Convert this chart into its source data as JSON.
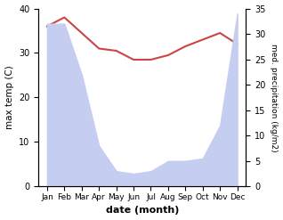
{
  "months": [
    "Jan",
    "Feb",
    "Mar",
    "Apr",
    "May",
    "Jun",
    "Jul",
    "Aug",
    "Sep",
    "Oct",
    "Nov",
    "Dec"
  ],
  "month_indices": [
    0,
    1,
    2,
    3,
    4,
    5,
    6,
    7,
    8,
    9,
    10,
    11
  ],
  "temperature": [
    36.0,
    38.0,
    34.5,
    31.0,
    30.5,
    28.5,
    28.5,
    29.5,
    31.5,
    33.0,
    34.5,
    32.0
  ],
  "precipitation": [
    32.0,
    32.0,
    22.0,
    8.0,
    3.0,
    2.5,
    3.0,
    5.0,
    5.0,
    5.5,
    12.0,
    34.0
  ],
  "temp_color": "#cc4444",
  "precip_fill_color": "#c5cef0",
  "title": "",
  "xlabel": "date (month)",
  "ylabel_left": "max temp (C)",
  "ylabel_right": "med. precipitation (kg/m2)",
  "ylim_left": [
    0,
    40
  ],
  "ylim_right": [
    0,
    35
  ],
  "yticks_left": [
    0,
    10,
    20,
    30,
    40
  ],
  "yticks_right": [
    0,
    5,
    10,
    15,
    20,
    25,
    30,
    35
  ],
  "bg_color": "#ffffff"
}
